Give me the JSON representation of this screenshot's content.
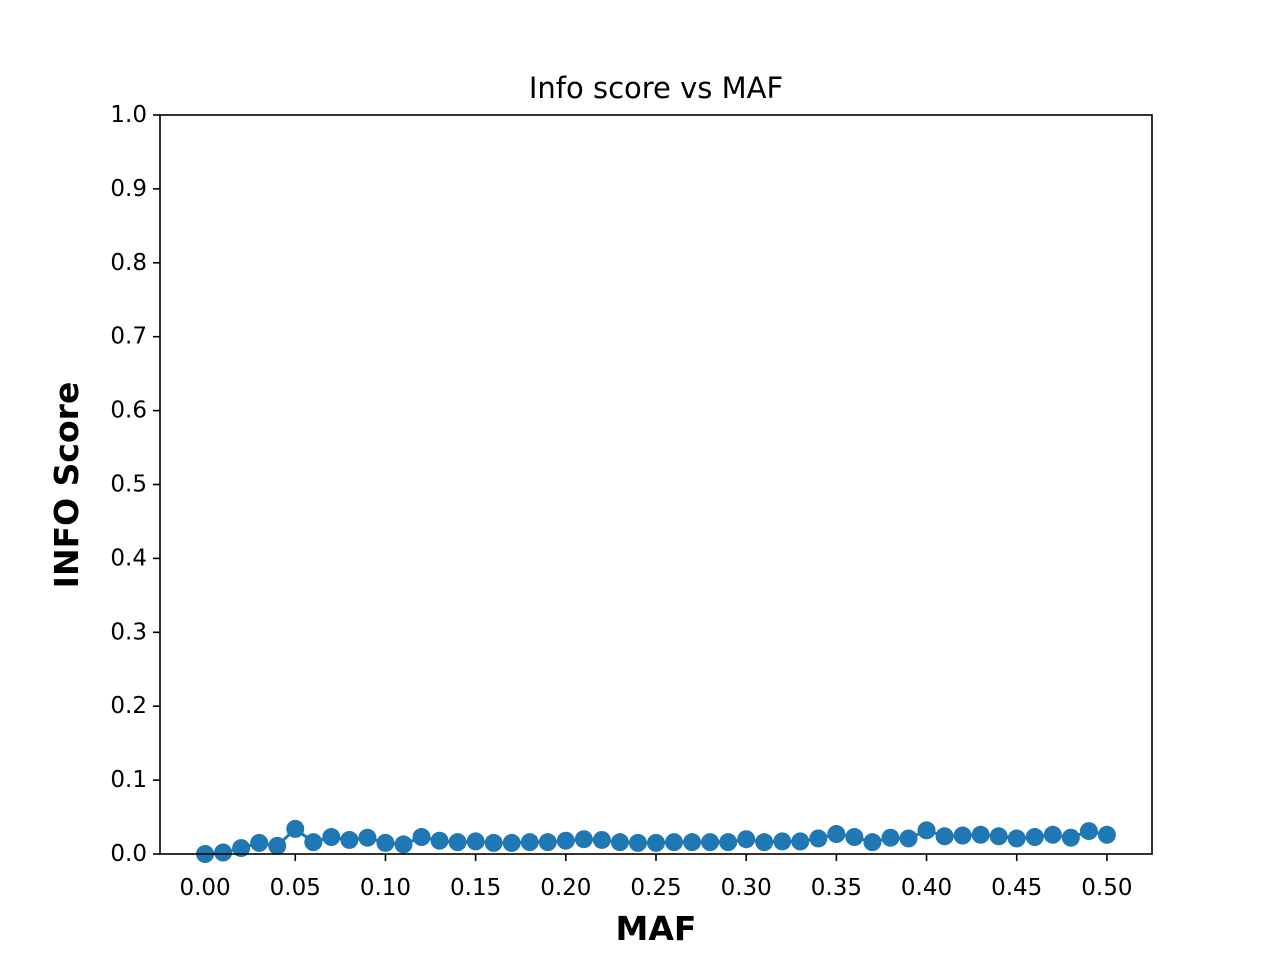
{
  "chart_data": {
    "type": "scatter",
    "title": "Info score vs MAF",
    "xlabel": "MAF",
    "ylabel": "INFO Score",
    "xlim": [
      -0.025,
      0.525
    ],
    "ylim": [
      0.0,
      1.0
    ],
    "xticks": [
      0.0,
      0.05,
      0.1,
      0.15,
      0.2,
      0.25,
      0.3,
      0.35,
      0.4,
      0.45,
      0.5
    ],
    "xtick_labels": [
      "0.00",
      "0.05",
      "0.10",
      "0.15",
      "0.20",
      "0.25",
      "0.30",
      "0.35",
      "0.40",
      "0.45",
      "0.50"
    ],
    "yticks": [
      0.0,
      0.1,
      0.2,
      0.3,
      0.4,
      0.5,
      0.6,
      0.7,
      0.8,
      0.9,
      1.0
    ],
    "ytick_labels": [
      "0.0",
      "0.1",
      "0.2",
      "0.3",
      "0.4",
      "0.5",
      "0.6",
      "0.7",
      "0.8",
      "0.9",
      "1.0"
    ],
    "grid": false,
    "color": "#1f77b4",
    "x": [
      0.0,
      0.01,
      0.02,
      0.03,
      0.04,
      0.05,
      0.06,
      0.07,
      0.08,
      0.09,
      0.1,
      0.11,
      0.12,
      0.13,
      0.14,
      0.15,
      0.16,
      0.17,
      0.18,
      0.19,
      0.2,
      0.21,
      0.22,
      0.23,
      0.24,
      0.25,
      0.26,
      0.27,
      0.28,
      0.29,
      0.3,
      0.31,
      0.32,
      0.33,
      0.34,
      0.35,
      0.36,
      0.37,
      0.38,
      0.39,
      0.4,
      0.41,
      0.42,
      0.43,
      0.44,
      0.45,
      0.46,
      0.47,
      0.48,
      0.49,
      0.5
    ],
    "y": [
      0.0,
      0.002,
      0.008,
      0.015,
      0.011,
      0.034,
      0.016,
      0.023,
      0.019,
      0.022,
      0.015,
      0.013,
      0.023,
      0.018,
      0.016,
      0.017,
      0.015,
      0.015,
      0.016,
      0.016,
      0.018,
      0.02,
      0.019,
      0.016,
      0.015,
      0.015,
      0.016,
      0.016,
      0.016,
      0.016,
      0.02,
      0.016,
      0.017,
      0.017,
      0.021,
      0.027,
      0.023,
      0.016,
      0.022,
      0.021,
      0.032,
      0.024,
      0.025,
      0.026,
      0.024,
      0.021,
      0.023,
      0.026,
      0.022,
      0.031,
      0.026
    ]
  }
}
